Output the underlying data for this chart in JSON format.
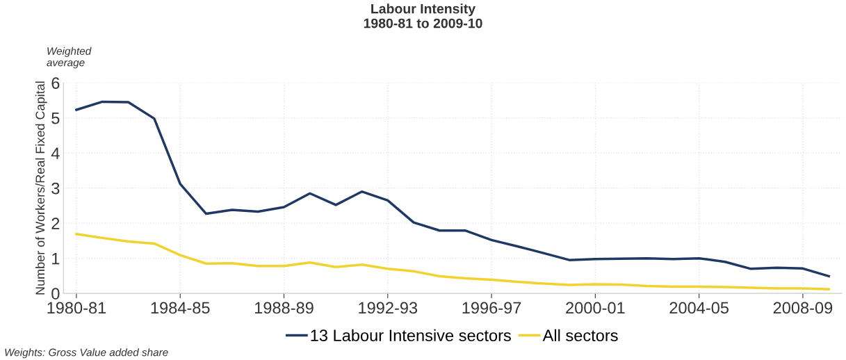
{
  "chart_data": {
    "type": "line",
    "title": "Labour Intensity\n1980-81 to 2009-10",
    "ylabel": "Number of Workers/Real Fixed Capital",
    "annotations": [
      "Weighted\naverage",
      "Weights: Gross Value added share"
    ],
    "categories": [
      "1980-81",
      null,
      null,
      null,
      "1984-85",
      null,
      null,
      null,
      "1988-89",
      null,
      null,
      null,
      "1992-93",
      null,
      null,
      null,
      "1996-97",
      null,
      null,
      null,
      "2000-01",
      null,
      null,
      null,
      "2004-05",
      null,
      null,
      null,
      "2008-09",
      null
    ],
    "series": [
      {
        "name": "13 Labour Intensive sectors",
        "color": "#1f3864",
        "values": [
          5.23,
          5.46,
          5.45,
          4.98,
          3.12,
          2.27,
          2.38,
          2.33,
          2.46,
          2.85,
          2.52,
          2.9,
          2.65,
          2.02,
          1.79,
          1.79,
          1.52,
          1.34,
          1.15,
          0.95,
          0.98,
          0.99,
          1.0,
          0.98,
          1.0,
          0.9,
          0.7,
          0.73,
          0.71,
          0.49
        ]
      },
      {
        "name": "All sectors",
        "color": "#f2d22e",
        "values": [
          1.69,
          1.58,
          1.48,
          1.42,
          1.09,
          0.85,
          0.86,
          0.78,
          0.78,
          0.88,
          0.75,
          0.82,
          0.7,
          0.63,
          0.49,
          0.43,
          0.39,
          0.33,
          0.28,
          0.24,
          0.26,
          0.25,
          0.21,
          0.19,
          0.19,
          0.18,
          0.16,
          0.14,
          0.14,
          0.12
        ]
      }
    ],
    "ylim": [
      0,
      6
    ],
    "yticks": [
      0,
      1,
      2,
      3,
      4,
      5,
      6
    ],
    "grid": true,
    "legend": "bottom",
    "marker": "none",
    "line_style": "solid"
  }
}
